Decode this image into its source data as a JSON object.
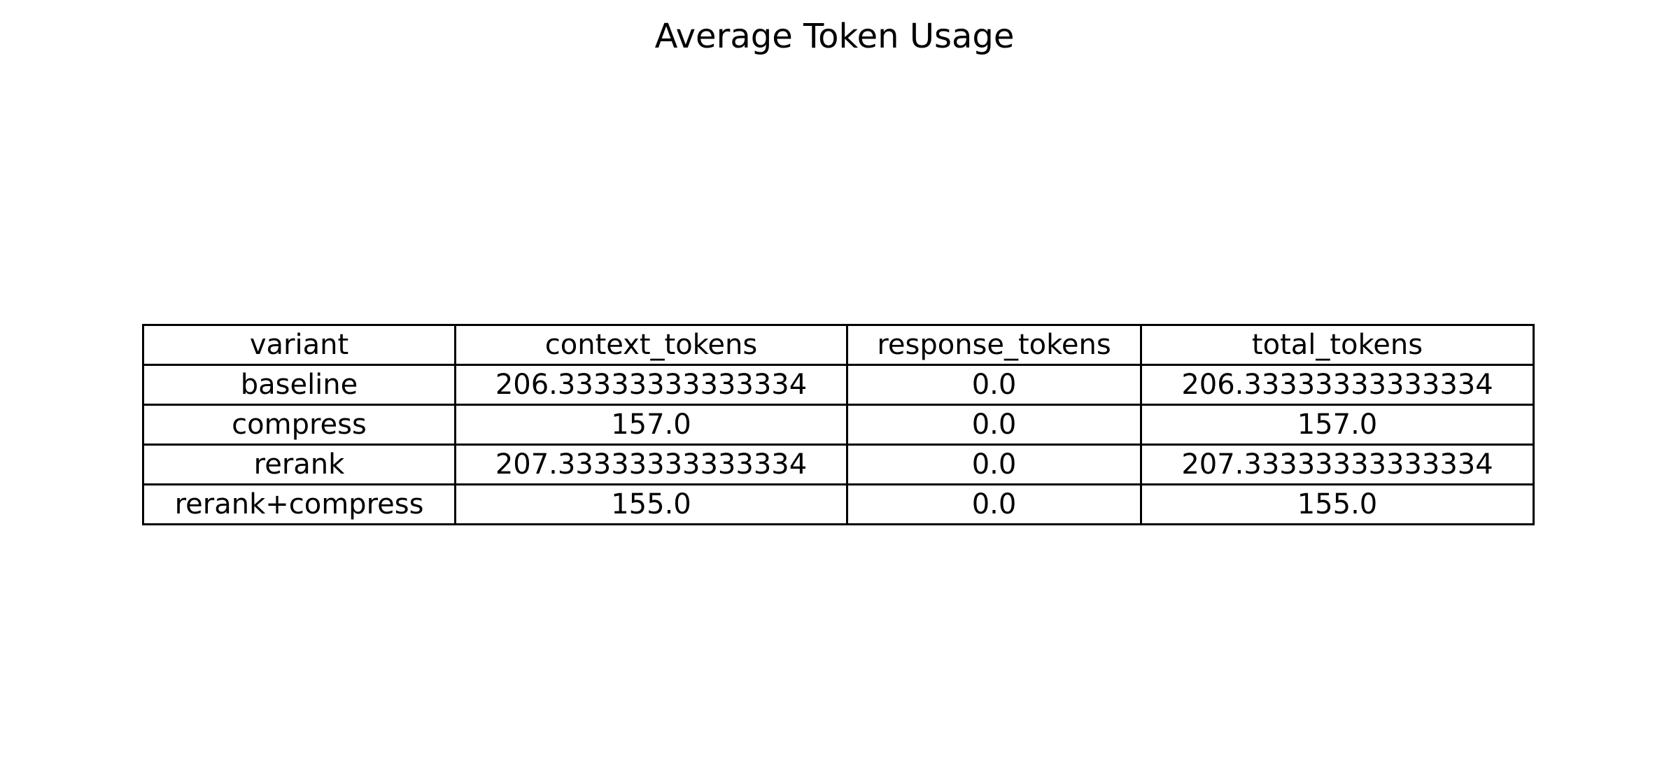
{
  "chart_data": {
    "type": "table",
    "title": "Average Token Usage",
    "columns": [
      "variant",
      "context_tokens",
      "response_tokens",
      "total_tokens"
    ],
    "rows": [
      [
        "baseline",
        "206.33333333333334",
        "0.0",
        "206.33333333333334"
      ],
      [
        "compress",
        "157.0",
        "0.0",
        "157.0"
      ],
      [
        "rerank",
        "207.33333333333334",
        "0.0",
        "207.33333333333334"
      ],
      [
        "rerank+compress",
        "155.0",
        "0.0",
        "155.0"
      ]
    ]
  }
}
